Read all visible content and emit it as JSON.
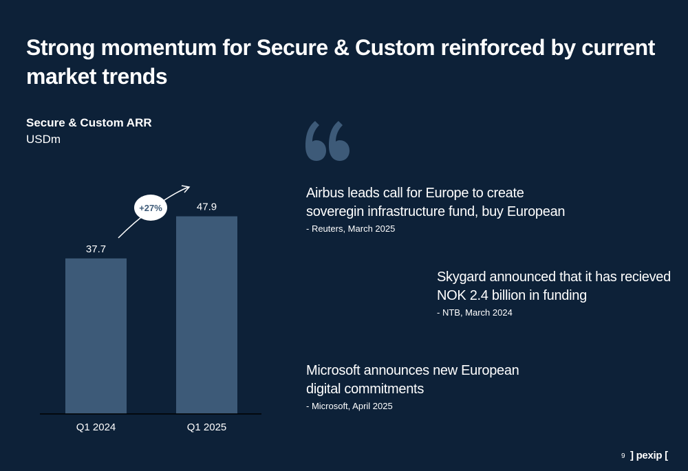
{
  "slide": {
    "title": "Strong momentum for Secure & Custom reinforced by current market trends",
    "page_number": "9",
    "logo": "] pexip ["
  },
  "chart": {
    "title": "Secure & Custom ARR",
    "unit": "USDm",
    "growth_label": "+27%"
  },
  "chart_data": {
    "type": "bar",
    "title": "Secure & Custom ARR",
    "subtitle": "USDm",
    "categories": [
      "Q1 2024",
      "Q1 2025"
    ],
    "values": [
      37.7,
      47.9
    ],
    "data_labels": [
      "37.7",
      "47.9"
    ],
    "annotations": [
      "+27%"
    ],
    "ylim": [
      0,
      60
    ],
    "grid": false,
    "legend": "none"
  },
  "quotes": [
    {
      "text": "Airbus leads call for Europe to create\nsoveregin infrastructure fund, buy European",
      "source": "- Reuters, March 2025"
    },
    {
      "text": "Skygard announced that it has recieved\nNOK 2.4 billion in funding",
      "source": "- NTB, March 2024"
    },
    {
      "text": "Microsoft announces new European\ndigital commitments",
      "source": "- Microsoft, April 2025"
    }
  ],
  "colors": {
    "background": "#0d2138",
    "bar": "#3d5a78",
    "quote_mark": "#3d5a78",
    "text": "#ffffff"
  },
  "icons": {
    "quote_mark": "quote-mark-icon",
    "arrow": "growth-arrow-icon"
  }
}
